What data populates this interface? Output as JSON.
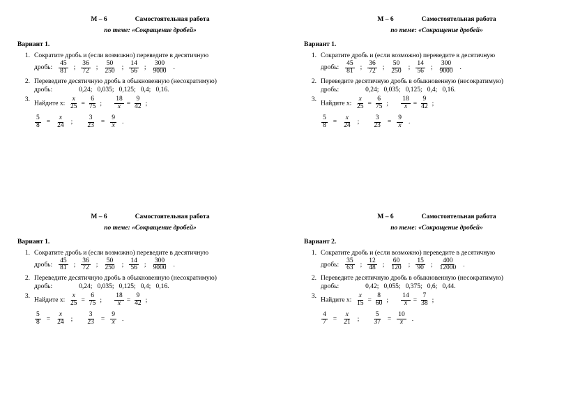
{
  "colors": {
    "text": "#000000",
    "bg": "#ffffff"
  },
  "header": {
    "m_tag": "М – 6",
    "title": "Самостоятельная работа",
    "subtitle": "по теме: «Сокращение дробей»"
  },
  "labels": {
    "task1": "Сократите дробь и (если возможно) переведите в десятичную",
    "task2": "Переведите десятичную дробь в обыкновенную (несократимую)",
    "task3": "Найдите х:",
    "frac_word": "дробь:",
    "frac_word2": "дробь:",
    "x": "х"
  },
  "blocks": [
    {
      "variant": "Вариант 1.",
      "fractions": [
        {
          "n": "45",
          "d": "81"
        },
        {
          "n": "36",
          "d": "72"
        },
        {
          "n": "50",
          "d": "250"
        },
        {
          "n": "14",
          "d": "56"
        },
        {
          "n": "300",
          "d": "9000"
        }
      ],
      "decimals": [
        "0,24",
        "0,035",
        "0,125",
        "0,4",
        "0,16"
      ],
      "eq1": [
        {
          "l": {
            "n": "х",
            "d": "25"
          },
          "r": {
            "n": "6",
            "d": "75"
          }
        },
        {
          "l": {
            "n": "18",
            "d": "х"
          },
          "r": {
            "n": "9",
            "d": "42"
          }
        }
      ],
      "eq2": [
        {
          "l": {
            "n": "5",
            "d": "8"
          },
          "r": {
            "n": "х",
            "d": "24"
          }
        },
        {
          "l": {
            "n": "3",
            "d": "23"
          },
          "r": {
            "n": "9",
            "d": "х"
          }
        }
      ]
    },
    {
      "variant": "Вариант 1.",
      "fractions": [
        {
          "n": "45",
          "d": "81"
        },
        {
          "n": "36",
          "d": "72"
        },
        {
          "n": "50",
          "d": "250"
        },
        {
          "n": "14",
          "d": "56"
        },
        {
          "n": "300",
          "d": "9000"
        }
      ],
      "decimals": [
        "0,24",
        "0,035",
        "0,125",
        "0,4",
        "0,16"
      ],
      "eq1": [
        {
          "l": {
            "n": "х",
            "d": "25"
          },
          "r": {
            "n": "6",
            "d": "75"
          }
        },
        {
          "l": {
            "n": "18",
            "d": "х"
          },
          "r": {
            "n": "9",
            "d": "42"
          }
        }
      ],
      "eq2": [
        {
          "l": {
            "n": "5",
            "d": "8"
          },
          "r": {
            "n": "х",
            "d": "24"
          }
        },
        {
          "l": {
            "n": "3",
            "d": "23"
          },
          "r": {
            "n": "9",
            "d": "х"
          }
        }
      ]
    },
    {
      "variant": "Вариант 1.",
      "fractions": [
        {
          "n": "45",
          "d": "81"
        },
        {
          "n": "36",
          "d": "72"
        },
        {
          "n": "50",
          "d": "250"
        },
        {
          "n": "14",
          "d": "56"
        },
        {
          "n": "300",
          "d": "9000"
        }
      ],
      "decimals": [
        "0,24",
        "0,035",
        "0,125",
        "0,4",
        "0,16"
      ],
      "eq1": [
        {
          "l": {
            "n": "х",
            "d": "25"
          },
          "r": {
            "n": "6",
            "d": "75"
          }
        },
        {
          "l": {
            "n": "18",
            "d": "х"
          },
          "r": {
            "n": "9",
            "d": "42"
          }
        }
      ],
      "eq2": [
        {
          "l": {
            "n": "5",
            "d": "8"
          },
          "r": {
            "n": "х",
            "d": "24"
          }
        },
        {
          "l": {
            "n": "3",
            "d": "23"
          },
          "r": {
            "n": "9",
            "d": "х"
          }
        }
      ]
    },
    {
      "variant": "Вариант 2.",
      "fractions": [
        {
          "n": "35",
          "d": "63"
        },
        {
          "n": "12",
          "d": "48"
        },
        {
          "n": "60",
          "d": "120"
        },
        {
          "n": "15",
          "d": "90"
        },
        {
          "n": "400",
          "d": "12000"
        }
      ],
      "decimals": [
        "0,42",
        "0,055",
        "0,375",
        "0,6",
        "0,44"
      ],
      "eq1": [
        {
          "l": {
            "n": "х",
            "d": "15"
          },
          "r": {
            "n": "8",
            "d": "60"
          }
        },
        {
          "l": {
            "n": "14",
            "d": "х"
          },
          "r": {
            "n": "7",
            "d": "38"
          }
        }
      ],
      "eq2": [
        {
          "l": {
            "n": "4",
            "d": "7"
          },
          "r": {
            "n": "х",
            "d": "21"
          }
        },
        {
          "l": {
            "n": "5",
            "d": "37"
          },
          "r": {
            "n": "10",
            "d": "х"
          }
        }
      ]
    }
  ]
}
